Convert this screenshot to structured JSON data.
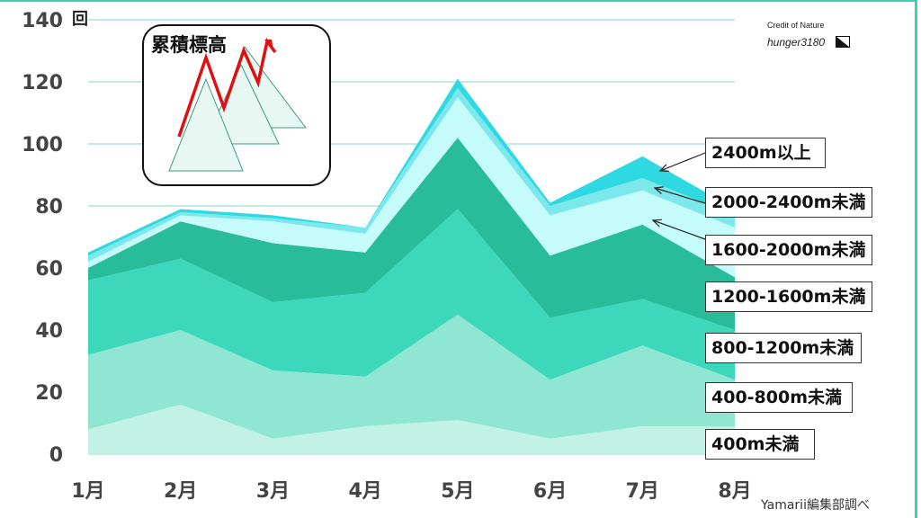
{
  "chart_data": {
    "type": "area",
    "stacked": true,
    "unit_label": "回",
    "x": [
      "1月",
      "2月",
      "3月",
      "4月",
      "5月",
      "6月",
      "7月",
      "8月"
    ],
    "ylim": [
      0,
      140
    ],
    "yticks": [
      0,
      20,
      40,
      60,
      80,
      100,
      120,
      140
    ],
    "series": [
      {
        "name": "400m未満",
        "values": [
          8,
          16,
          5,
          9,
          11,
          5,
          9,
          9
        ],
        "color": "#c2f2e6"
      },
      {
        "name": "400-800m未満",
        "values": [
          24,
          24,
          22,
          16,
          34,
          19,
          26,
          15
        ],
        "color": "#8fe7d3"
      },
      {
        "name": "800-1200m未満",
        "values": [
          24,
          23,
          22,
          27,
          34,
          20,
          15,
          16
        ],
        "color": "#3dd8bb"
      },
      {
        "name": "1200-1600m未満",
        "values": [
          4,
          12,
          19,
          13,
          23,
          20,
          24,
          17
        ],
        "color": "#28bc9b"
      },
      {
        "name": "1600-2000m未満",
        "values": [
          2,
          2,
          7,
          6,
          13,
          13,
          11,
          16
        ],
        "color": "#c5fbfb"
      },
      {
        "name": "2000-2400m未満",
        "values": [
          2,
          1,
          1,
          2,
          3,
          3,
          4,
          4
        ],
        "color": "#7ce8ec"
      },
      {
        "name": "2400m以上",
        "values": [
          1,
          1,
          1,
          0,
          3,
          1,
          7,
          2
        ],
        "color": "#2ed9e2"
      }
    ],
    "grid": true,
    "gridline_color": "#7fd8ce"
  },
  "inset": {
    "title": "累積標高",
    "line_color": "#e01010",
    "triangle_fill": "#e6f8f1",
    "triangle_stroke": "#3a9a86"
  },
  "credit": {
    "line1": "Credit of Nature",
    "line2": "hunger3180"
  },
  "source": "Yamarii編集部調べ",
  "arrow_color": "#222222"
}
